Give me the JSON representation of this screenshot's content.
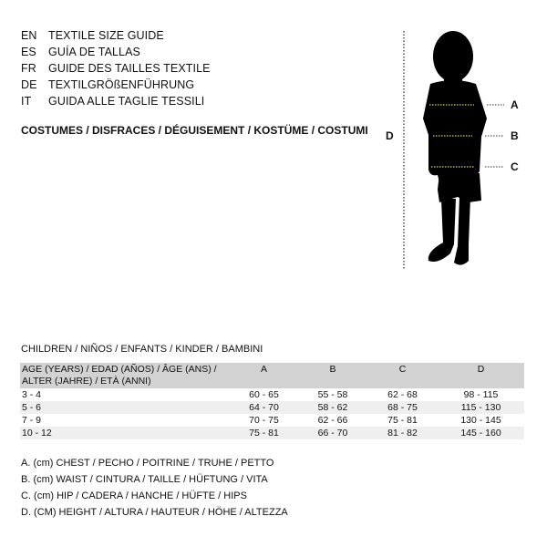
{
  "languages": [
    {
      "code": "EN",
      "text": "TEXTILE SIZE GUIDE"
    },
    {
      "code": "ES",
      "text": "GUÍA DE TALLAS"
    },
    {
      "code": "FR",
      "text": "GUIDE DES TAILLES TEXTILE"
    },
    {
      "code": "DE",
      "text": "TEXTILGRÖßENFÜHRUNG"
    },
    {
      "code": "IT",
      "text": "GUIDA ALLE TAGLIE TESSILI"
    }
  ],
  "subtitle": "COSTUMES / DISFRACES / DÉGUISEMENT / KOSTÜME / COSTUMI",
  "figure": {
    "labels": {
      "a": "A",
      "b": "B",
      "c": "C",
      "d": "D"
    }
  },
  "section_title": "CHILDREN / NIÑOS / ENFANTS / KINDER / BAMBINI",
  "table": {
    "header": {
      "age_line1": "AGE (YEARS) / EDAD (AÑOS) / ÂGE (ANS) /",
      "age_line2": "ALTER (JAHRE) / ETÀ (ANNI)",
      "cols": [
        "A",
        "B",
        "C",
        "D"
      ]
    },
    "rows": [
      {
        "age": "3 - 4",
        "v": [
          "60 - 65",
          "55 - 58",
          "62 - 68",
          "98 - 115"
        ]
      },
      {
        "age": "5 - 6",
        "v": [
          "64 - 70",
          "58 - 62",
          "68 - 75",
          "115 - 130"
        ]
      },
      {
        "age": "7 - 9",
        "v": [
          "70 - 75",
          "62 - 66",
          "75 - 81",
          "130 - 145"
        ]
      },
      {
        "age": "10 - 12",
        "v": [
          "75 - 81",
          "66 - 70",
          "81 - 82",
          "145 - 160"
        ]
      }
    ]
  },
  "legend": [
    "A. (cm) CHEST / PECHO / POITRINE / TRUHE / PETTO",
    "B. (cm) WAIST / CINTURA / TAILLE / HÜFTUNG / VITA",
    "C. (cm) HIP / CADERA / HANCHE / HÜFTE / HIPS",
    "D. (CM) HEIGHT / ALTURA / HAUTEUR / HÖHE / ALTEZZA"
  ],
  "colors": {
    "measure_line": "#d8d24a",
    "header_bg": "#d2d2d2",
    "alt_row": "#efefef"
  }
}
